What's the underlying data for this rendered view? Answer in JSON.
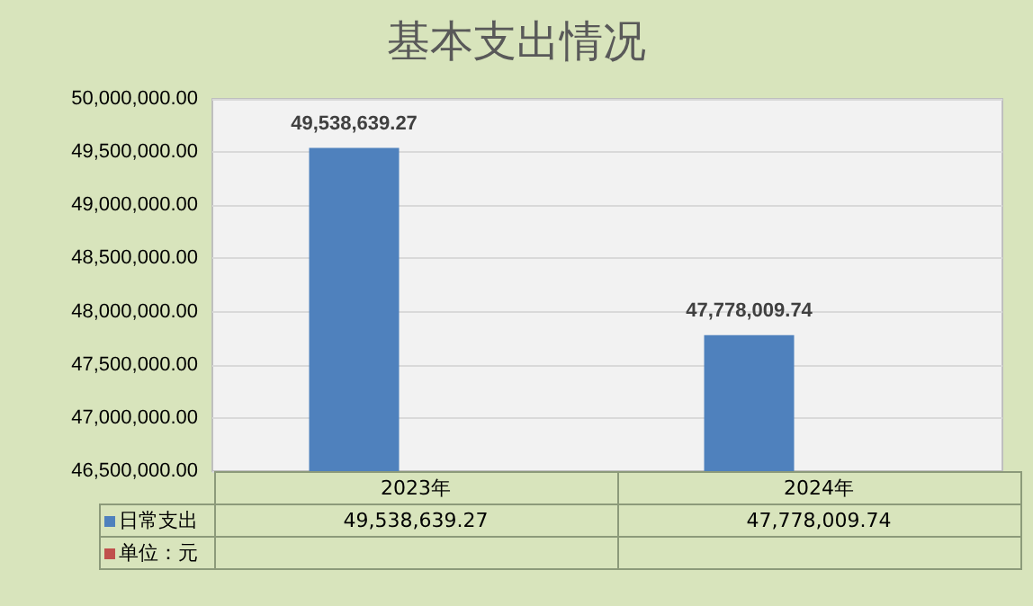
{
  "chart_data": {
    "type": "bar",
    "title": "基本支出情况",
    "categories": [
      "2023年",
      "2024年"
    ],
    "series": [
      {
        "name": "日常支出",
        "color": "#4f81bd",
        "values": [
          49538639.27,
          47778009.74
        ],
        "value_labels": [
          "49,538,639.27",
          "47,778,009.74"
        ]
      },
      {
        "name": "单位：元",
        "color": "#c0504d",
        "values": [
          null,
          null
        ]
      }
    ],
    "ylim": [
      46500000,
      50000000
    ],
    "yticks": [
      {
        "value": 46500000,
        "label": "46,500,000.00"
      },
      {
        "value": 47000000,
        "label": "47,000,000.00"
      },
      {
        "value": 47500000,
        "label": "47,500,000.00"
      },
      {
        "value": 48000000,
        "label": "48,000,000.00"
      },
      {
        "value": 48500000,
        "label": "48,500,000.00"
      },
      {
        "value": 49000000,
        "label": "49,000,000.00"
      },
      {
        "value": 49500000,
        "label": "49,500,000.00"
      },
      {
        "value": 50000000,
        "label": "50,000,000.00"
      }
    ],
    "grid": "y",
    "legend": "bottom"
  }
}
